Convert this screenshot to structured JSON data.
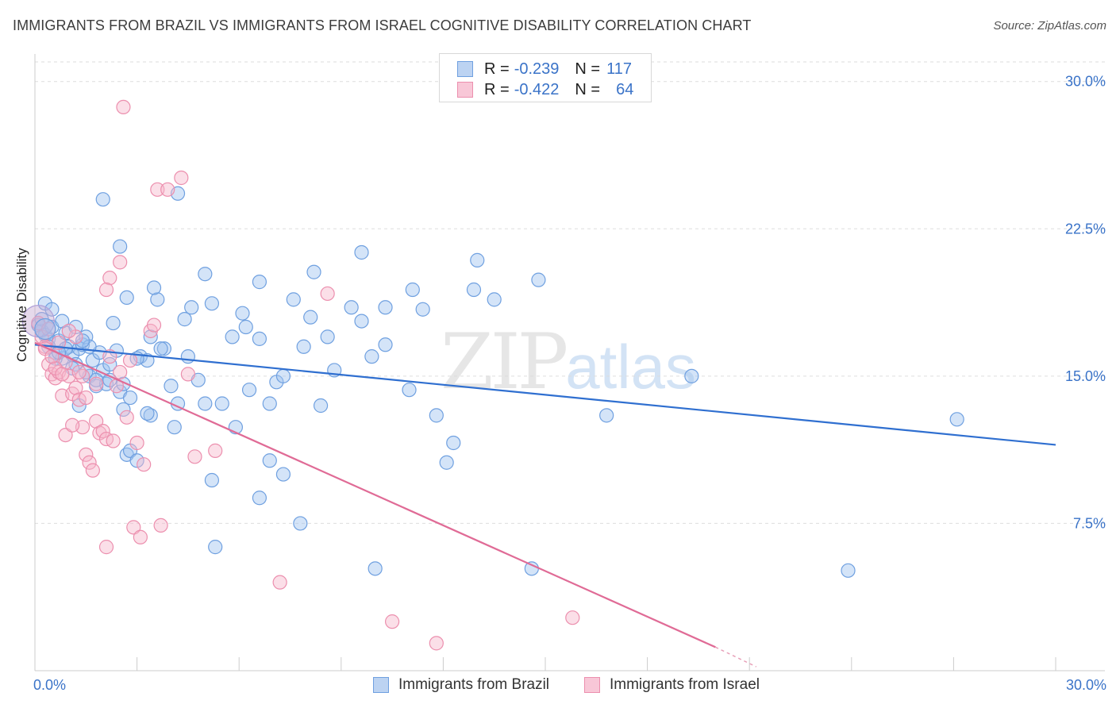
{
  "header": {
    "title": "IMMIGRANTS FROM BRAZIL VS IMMIGRANTS FROM ISRAEL COGNITIVE DISABILITY CORRELATION CHART",
    "source": "Source: ZipAtlas.com"
  },
  "watermark": {
    "zip": "ZIP",
    "atlas": "atlas"
  },
  "legend": {
    "rows": [
      {
        "r_label": "R =",
        "r_value": "-0.239",
        "n_label": "N =",
        "n_value": "117",
        "color": "#6fa0e0",
        "fill": "#bcd3f2"
      },
      {
        "r_label": "R =",
        "r_value": "-0.422",
        "n_label": "N =",
        "n_value": "64",
        "color": "#ec8fae",
        "fill": "#f8c7d7"
      }
    ]
  },
  "bottom_legend": {
    "items": [
      {
        "label": "Immigrants from Brazil",
        "color": "#6fa0e0",
        "fill": "#bcd3f2"
      },
      {
        "label": "Immigrants from Israel",
        "color": "#ec8fae",
        "fill": "#f8c7d7"
      }
    ]
  },
  "chart_data": {
    "type": "scatter",
    "title": "IMMIGRANTS FROM BRAZIL VS IMMIGRANTS FROM ISRAEL COGNITIVE DISABILITY CORRELATION CHART",
    "ylabel": "Cognitive Disability",
    "xlabel": "",
    "xlim": [
      0,
      30
    ],
    "ylim": [
      0,
      31
    ],
    "x_tick_labels": [
      "0.0%",
      "30.0%"
    ],
    "y_ticks": [
      7.5,
      15.0,
      22.5,
      30.0
    ],
    "y_tick_labels": [
      "7.5%",
      "15.0%",
      "22.5%",
      "30.0%"
    ],
    "grid": true,
    "legend_position": "top-center",
    "series": [
      {
        "name": "Immigrants from Brazil",
        "color": "#3a73c8",
        "points": [
          [
            0.1,
            17.6
          ],
          [
            0.2,
            17.3
          ],
          [
            0.3,
            17.1
          ],
          [
            0.4,
            16.9
          ],
          [
            0.5,
            17.5
          ],
          [
            0.6,
            16.2
          ],
          [
            0.7,
            16.8
          ],
          [
            0.8,
            15.9
          ],
          [
            0.9,
            17.2
          ],
          [
            1.0,
            16.5
          ],
          [
            1.1,
            16.1
          ],
          [
            1.2,
            15.6
          ],
          [
            1.3,
            16.4
          ],
          [
            1.4,
            16.6
          ],
          [
            1.5,
            17.0
          ],
          [
            1.6,
            15.0
          ],
          [
            1.7,
            15.8
          ],
          [
            1.8,
            14.5
          ],
          [
            1.9,
            16.2
          ],
          [
            2.0,
            15.3
          ],
          [
            2.1,
            14.6
          ],
          [
            2.2,
            15.6
          ],
          [
            2.3,
            17.7
          ],
          [
            2.5,
            14.2
          ],
          [
            2.6,
            14.6
          ],
          [
            2.7,
            11.0
          ],
          [
            2.8,
            11.2
          ],
          [
            3.0,
            10.7
          ],
          [
            3.1,
            16.0
          ],
          [
            3.3,
            15.8
          ],
          [
            3.4,
            17.0
          ],
          [
            3.6,
            18.9
          ],
          [
            3.8,
            16.4
          ],
          [
            4.0,
            14.5
          ],
          [
            4.2,
            13.6
          ],
          [
            4.5,
            16.0
          ],
          [
            4.8,
            14.8
          ],
          [
            5.0,
            13.6
          ],
          [
            5.2,
            18.7
          ],
          [
            5.5,
            13.6
          ],
          [
            5.8,
            17.0
          ],
          [
            6.1,
            18.2
          ],
          [
            6.3,
            14.3
          ],
          [
            6.6,
            16.9
          ],
          [
            6.9,
            13.6
          ],
          [
            7.1,
            14.7
          ],
          [
            7.3,
            10.0
          ],
          [
            7.6,
            18.9
          ],
          [
            7.9,
            16.5
          ],
          [
            8.1,
            18.0
          ],
          [
            8.4,
            13.5
          ],
          [
            8.6,
            17.0
          ],
          [
            9.3,
            18.5
          ],
          [
            9.6,
            17.8
          ],
          [
            9.9,
            16.0
          ],
          [
            10.3,
            16.6
          ],
          [
            11.0,
            14.3
          ],
          [
            11.4,
            18.4
          ],
          [
            11.8,
            13.0
          ],
          [
            12.3,
            11.6
          ],
          [
            12.9,
            19.4
          ],
          [
            13.5,
            18.9
          ],
          [
            14.8,
            19.9
          ],
          [
            16.8,
            13.0
          ],
          [
            19.3,
            15.0
          ],
          [
            27.1,
            12.8
          ],
          [
            0.3,
            18.7
          ],
          [
            0.5,
            18.4
          ],
          [
            0.9,
            16.4
          ],
          [
            1.6,
            16.5
          ],
          [
            2.0,
            24.0
          ],
          [
            2.5,
            21.6
          ],
          [
            3.5,
            19.5
          ],
          [
            4.2,
            24.3
          ],
          [
            5.0,
            20.2
          ],
          [
            6.6,
            19.8
          ],
          [
            8.2,
            20.3
          ],
          [
            9.6,
            21.3
          ],
          [
            11.1,
            19.4
          ],
          [
            13.0,
            20.9
          ],
          [
            1.3,
            13.5
          ],
          [
            2.6,
            13.3
          ],
          [
            3.4,
            13.0
          ],
          [
            4.1,
            12.4
          ],
          [
            5.9,
            12.4
          ],
          [
            6.6,
            8.8
          ],
          [
            6.9,
            10.7
          ],
          [
            5.2,
            9.7
          ],
          [
            7.8,
            7.5
          ],
          [
            10.0,
            5.2
          ],
          [
            5.3,
            6.3
          ],
          [
            14.6,
            5.2
          ],
          [
            23.9,
            5.1
          ],
          [
            12.1,
            10.6
          ],
          [
            3.7,
            16.4
          ],
          [
            2.7,
            19.0
          ],
          [
            1.8,
            14.8
          ],
          [
            3.0,
            15.9
          ],
          [
            2.2,
            14.8
          ],
          [
            0.8,
            17.8
          ],
          [
            0.6,
            15.9
          ],
          [
            1.1,
            15.4
          ],
          [
            1.4,
            16.8
          ],
          [
            2.4,
            16.3
          ],
          [
            4.6,
            18.5
          ],
          [
            4.4,
            17.9
          ],
          [
            0.4,
            16.5
          ],
          [
            0.2,
            17.9
          ],
          [
            0.7,
            16.2
          ],
          [
            1.5,
            15.2
          ],
          [
            3.3,
            13.1
          ],
          [
            6.2,
            17.5
          ],
          [
            8.8,
            15.3
          ],
          [
            1.2,
            17.5
          ],
          [
            10.3,
            18.5
          ],
          [
            2.8,
            13.9
          ],
          [
            7.3,
            15.0
          ]
        ],
        "regression": {
          "x": [
            0,
            30
          ],
          "y": [
            16.6,
            11.5
          ]
        }
      },
      {
        "name": "Immigrants from Israel",
        "color": "#e06b96",
        "points": [
          [
            0.1,
            17.7
          ],
          [
            0.2,
            17.0
          ],
          [
            0.3,
            16.5
          ],
          [
            0.4,
            15.6
          ],
          [
            0.5,
            15.1
          ],
          [
            0.6,
            14.9
          ],
          [
            0.7,
            15.2
          ],
          [
            0.8,
            14.0
          ],
          [
            0.9,
            15.7
          ],
          [
            1.0,
            15.0
          ],
          [
            1.1,
            14.1
          ],
          [
            1.2,
            14.4
          ],
          [
            1.3,
            13.8
          ],
          [
            1.4,
            12.4
          ],
          [
            1.5,
            11.0
          ],
          [
            1.6,
            10.6
          ],
          [
            1.7,
            10.2
          ],
          [
            1.8,
            12.7
          ],
          [
            1.9,
            12.1
          ],
          [
            2.0,
            12.2
          ],
          [
            2.1,
            11.8
          ],
          [
            2.3,
            11.7
          ],
          [
            2.5,
            15.2
          ],
          [
            2.8,
            15.8
          ],
          [
            3.0,
            11.6
          ],
          [
            3.2,
            10.5
          ],
          [
            3.4,
            17.3
          ],
          [
            3.6,
            24.5
          ],
          [
            3.9,
            24.5
          ],
          [
            4.3,
            25.1
          ],
          [
            4.5,
            15.1
          ],
          [
            4.7,
            10.9
          ],
          [
            5.3,
            11.2
          ],
          [
            7.2,
            4.5
          ],
          [
            8.6,
            19.2
          ],
          [
            10.5,
            2.5
          ],
          [
            11.8,
            1.4
          ],
          [
            15.8,
            2.7
          ],
          [
            2.6,
            28.7
          ],
          [
            2.5,
            20.8
          ],
          [
            2.2,
            20.0
          ],
          [
            2.1,
            19.4
          ],
          [
            0.9,
            12.0
          ],
          [
            1.1,
            12.5
          ],
          [
            0.6,
            15.4
          ],
          [
            0.3,
            16.4
          ],
          [
            1.4,
            15.0
          ],
          [
            2.2,
            16.0
          ],
          [
            2.9,
            7.3
          ],
          [
            3.1,
            6.8
          ],
          [
            3.7,
            7.4
          ],
          [
            2.1,
            6.3
          ],
          [
            1.8,
            14.6
          ],
          [
            0.4,
            17.4
          ],
          [
            1.2,
            17.0
          ],
          [
            0.7,
            16.7
          ],
          [
            2.4,
            14.5
          ],
          [
            1.0,
            17.3
          ],
          [
            3.5,
            17.6
          ],
          [
            2.7,
            12.9
          ],
          [
            0.8,
            15.1
          ],
          [
            1.5,
            13.9
          ],
          [
            0.5,
            16.0
          ],
          [
            1.3,
            15.2
          ]
        ],
        "regression": {
          "x": [
            0,
            20
          ],
          "y": [
            16.7,
            1.2
          ]
        },
        "regression_extension": {
          "x": [
            20,
            21.2
          ],
          "y": [
            1.2,
            0.2
          ]
        }
      }
    ]
  }
}
